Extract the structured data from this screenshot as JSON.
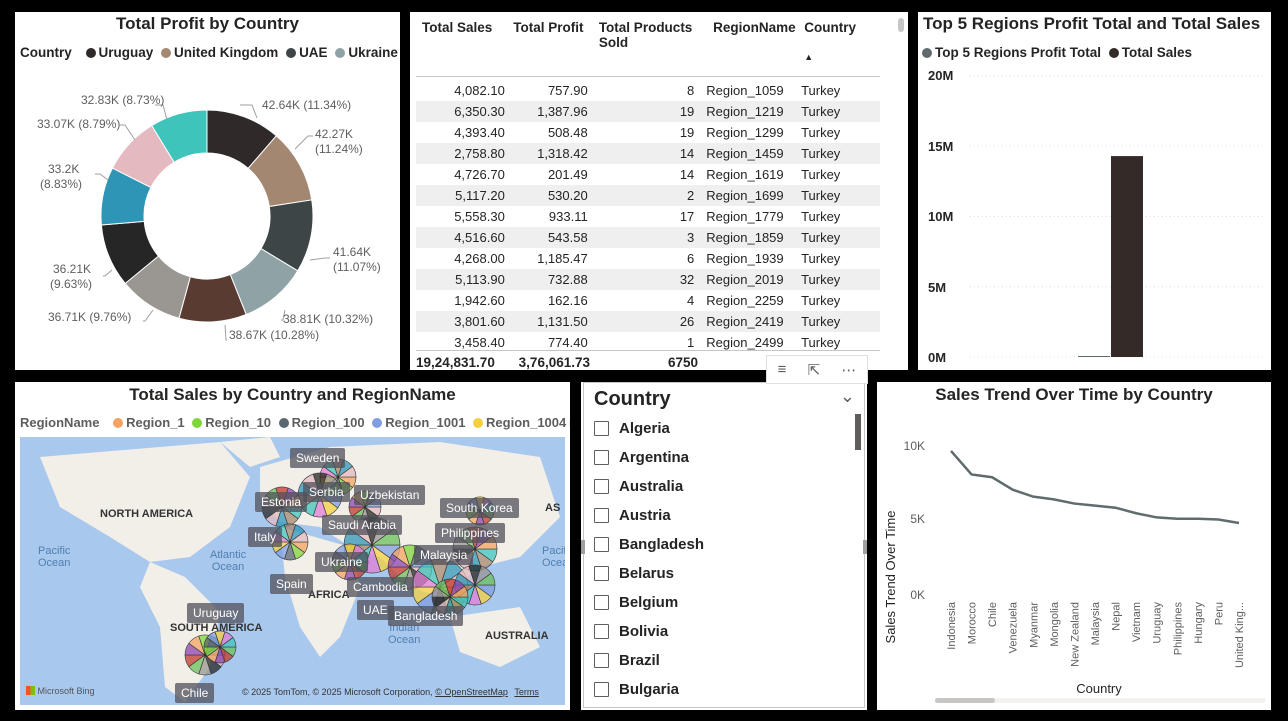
{
  "donut": {
    "title": "Total Profit by Country",
    "legend_title": "Country",
    "legend": [
      {
        "name": "Uruguay",
        "color": "#2f2a29"
      },
      {
        "name": "United Kingdom",
        "color": "#a48770"
      },
      {
        "name": "UAE",
        "color": "#3d4547"
      },
      {
        "name": "Ukraine",
        "color": "#8fa2a6"
      }
    ],
    "labels": {
      "l0": "42.64K (11.34%)",
      "l1a": "42.27K",
      "l1b": "(11.24%)",
      "l2a": "41.64K",
      "l2b": "(11.07%)",
      "l3": "38.81K (10.32%)",
      "l4": "38.67K (10.28%)",
      "l5": "36.71K (9.76%)",
      "l6a": "36.21K",
      "l6b": "(9.63%)",
      "l7a": "33.2K",
      "l7b": "(8.83%)",
      "l8": "33.07K (8.79%)",
      "l9": "32.83K (8.73%)"
    }
  },
  "chart_data": [
    {
      "type": "pie",
      "title": "Total Profit by Country",
      "legend_title": "Country",
      "values": [
        42.64,
        42.27,
        41.64,
        38.81,
        38.67,
        36.71,
        36.21,
        33.2,
        33.07,
        32.83
      ],
      "percents": [
        11.34,
        11.24,
        11.07,
        10.32,
        10.28,
        9.76,
        9.63,
        8.83,
        8.79,
        8.73
      ],
      "colors": [
        "#2f2a29",
        "#a48770",
        "#3d4547",
        "#8fa2a6",
        "#5a3b32",
        "#9a9692",
        "#262626",
        "#2e95b7",
        "#e4b9bf",
        "#3fc4bc"
      ]
    },
    {
      "type": "bar",
      "title": "Top 5 Regions Profit Total and Total Sales",
      "series": [
        {
          "name": "Top 5 Regions Profit Total",
          "values": [
            0
          ]
        },
        {
          "name": "Total Sales",
          "values": [
            14300000
          ]
        }
      ],
      "yticks": [
        "0M",
        "5M",
        "10M",
        "15M",
        "20M"
      ],
      "ylim": [
        0,
        20000000
      ]
    },
    {
      "type": "line",
      "title": "Sales Trend Over Time by Country",
      "xlabel": "Country",
      "ylabel": "Sales Trend Over Time",
      "categories": [
        "Indonesia",
        "Morocco",
        "Chile",
        "Venezuela",
        "Myanmar",
        "Mongolia",
        "New Zealand",
        "Malaysia",
        "Nepal",
        "Vietnam",
        "Uruguay",
        "Philippines",
        "Hungary",
        "Peru",
        "United King..."
      ],
      "values": [
        10400,
        8700,
        8500,
        7600,
        7100,
        6900,
        6600,
        6450,
        6300,
        5900,
        5600,
        5500,
        5500,
        5450,
        5200
      ],
      "yticks": [
        "0K",
        "5K",
        "10K"
      ],
      "ylim": [
        0,
        11000
      ]
    }
  ],
  "table": {
    "headers": [
      "Total Sales",
      "Total Profit",
      "Total Products Sold",
      "RegionName",
      "Country"
    ],
    "rows": [
      [
        "4,082.10",
        "757.90",
        "8",
        "Region_1059",
        "Turkey"
      ],
      [
        "6,350.30",
        "1,387.96",
        "19",
        "Region_1219",
        "Turkey"
      ],
      [
        "4,393.40",
        "508.48",
        "19",
        "Region_1299",
        "Turkey"
      ],
      [
        "2,758.80",
        "1,318.42",
        "14",
        "Region_1459",
        "Turkey"
      ],
      [
        "4,726.70",
        "201.49",
        "14",
        "Region_1619",
        "Turkey"
      ],
      [
        "5,117.20",
        "530.20",
        "2",
        "Region_1699",
        "Turkey"
      ],
      [
        "5,558.30",
        "933.11",
        "17",
        "Region_1779",
        "Turkey"
      ],
      [
        "4,516.60",
        "543.58",
        "3",
        "Region_1859",
        "Turkey"
      ],
      [
        "4,268.00",
        "1,185.47",
        "6",
        "Region_1939",
        "Turkey"
      ],
      [
        "5,113.90",
        "732.88",
        "32",
        "Region_2019",
        "Turkey"
      ],
      [
        "1,942.60",
        "162.16",
        "4",
        "Region_2259",
        "Turkey"
      ],
      [
        "3,801.60",
        "1,131.50",
        "26",
        "Region_2419",
        "Turkey"
      ],
      [
        "3,458.40",
        "774.40",
        "1",
        "Region_2499",
        "Turkey"
      ]
    ],
    "totals": [
      "19,24,831.70",
      "3,76,061.73",
      "6750"
    ]
  },
  "bar": {
    "title": "Top 5 Regions Profit Total and Total Sales",
    "legend": [
      {
        "name": "Top 5 Regions Profit Total",
        "color": "#5f6b6d"
      },
      {
        "name": "Total Sales",
        "color": "#342a28"
      }
    ],
    "yticks": [
      "20M",
      "15M",
      "10M",
      "5M",
      "0M"
    ]
  },
  "map": {
    "title": "Total Sales by Country and RegionName",
    "legend_title": "RegionName",
    "legend": [
      {
        "name": "Region_1",
        "color": "#f4a460"
      },
      {
        "name": "Region_10",
        "color": "#7fd63a"
      },
      {
        "name": "Region_100",
        "color": "#5a6670"
      },
      {
        "name": "Region_1001",
        "color": "#7f9fe0"
      },
      {
        "name": "Region_1004",
        "color": "#f4d03f"
      }
    ],
    "continents": {
      "na": "NORTH AMERICA",
      "sa": "SOUTH AMERICA",
      "af": "AFRICA",
      "au": "AUSTRALIA",
      "as": "AS"
    },
    "oceans": {
      "pacific": "Pacific\nOcean",
      "atlantic": "Atlantic\nOcean",
      "indian": "Indian\nOcean",
      "pacific2": "Pacific\nOcean"
    },
    "labels": {
      "sweden": "Sweden",
      "serbia": "Serbia",
      "estonia": "Estonia",
      "uzbekistan": "Uzbekistan",
      "southkorea": "South Korea",
      "italy": "Italy",
      "saudi": "Saudi Arabia",
      "philippines": "Philippines",
      "malaysia": "Malaysia",
      "ukraine": "Ukraine",
      "cambodia": "Cambodia",
      "spain": "Spain",
      "uae": "UAE",
      "bangladesh": "Bangladesh",
      "uruguay": "Uruguay",
      "chile": "Chile"
    },
    "brand": "Microsoft Bing",
    "copyright": "© 2025 TomTom, © 2025 Microsoft Corporation,",
    "osm": "© OpenStreetMap",
    "terms": "Terms"
  },
  "slicer": {
    "title": "Country",
    "items": [
      "Algeria",
      "Argentina",
      "Australia",
      "Austria",
      "Bangladesh",
      "Belarus",
      "Belgium",
      "Bolivia",
      "Brazil",
      "Bulgaria"
    ]
  },
  "line": {
    "title": "Sales Trend Over Time by Country",
    "ylabel": "Sales Trend Over Time",
    "xlabel": "Country",
    "yticks": [
      "10K",
      "5K",
      "0K"
    ]
  },
  "toolbar": {
    "filter": "filter-icon",
    "focus": "focus-mode-icon",
    "more": "more-options-icon"
  }
}
